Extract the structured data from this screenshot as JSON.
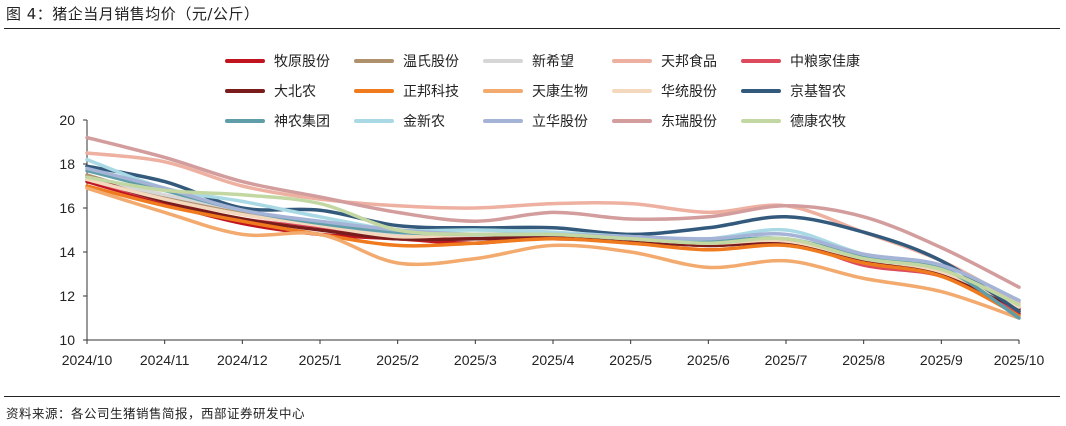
{
  "header": {
    "title": "图 4：猪企当月销售均价（元/公斤）"
  },
  "footer": {
    "source": "资料来源：各公司生猪销售简报，西部证券研发中心"
  },
  "chart_data": {
    "type": "line",
    "title": "猪企当月销售均价（元/公斤）",
    "xlabel": "",
    "ylabel": "",
    "ylim": [
      10,
      20
    ],
    "yticks": [
      10,
      12,
      14,
      16,
      18,
      20
    ],
    "grid": false,
    "legend_position": "top",
    "categories": [
      "2024/10",
      "2024/11",
      "2024/12",
      "2025/1",
      "2025/2",
      "2025/3",
      "2025/4",
      "2025/5",
      "2025/6",
      "2025/7",
      "2025/8",
      "2025/9",
      "2025/10"
    ],
    "series": [
      {
        "name": "牧原股份",
        "color": "#c0151f",
        "values": [
          17.2,
          16.2,
          15.3,
          14.8,
          14.6,
          14.4,
          14.7,
          14.5,
          14.3,
          14.4,
          13.5,
          13.0,
          11.2
        ]
      },
      {
        "name": "温氏股份",
        "color": "#b0916e",
        "values": [
          17.5,
          16.5,
          15.8,
          15.3,
          14.7,
          14.7,
          14.8,
          14.6,
          14.5,
          14.3,
          13.8,
          13.2,
          11.5
        ]
      },
      {
        "name": "新希望",
        "color": "#d6d6d6",
        "values": [
          17.4,
          16.6,
          15.9,
          15.2,
          14.8,
          14.7,
          14.6,
          14.5,
          14.4,
          14.4,
          13.7,
          13.1,
          11.4
        ]
      },
      {
        "name": "天邦食品",
        "color": "#eeb0a0",
        "values": [
          18.5,
          18.1,
          17.0,
          16.4,
          16.1,
          16.0,
          16.2,
          16.2,
          15.8,
          16.1,
          14.9,
          13.6,
          11.7
        ]
      },
      {
        "name": "中粮家佳康",
        "color": "#dc4a5e",
        "values": [
          17.3,
          16.3,
          15.5,
          15.1,
          14.6,
          14.6,
          14.6,
          14.5,
          14.3,
          14.5,
          13.4,
          12.9,
          11.3
        ]
      },
      {
        "name": "大北农",
        "color": "#7a1c1c",
        "values": [
          17.4,
          16.3,
          15.5,
          15.0,
          14.6,
          14.6,
          14.7,
          14.5,
          14.3,
          14.4,
          13.6,
          13.0,
          11.4
        ]
      },
      {
        "name": "正邦科技",
        "color": "#ef7b1e",
        "values": [
          17.0,
          16.1,
          15.4,
          14.8,
          14.3,
          14.4,
          14.6,
          14.4,
          14.1,
          14.3,
          13.5,
          12.9,
          11.1
        ]
      },
      {
        "name": "天康生物",
        "color": "#f2aa6e",
        "values": [
          16.9,
          15.8,
          14.8,
          14.8,
          13.5,
          13.7,
          14.3,
          14.0,
          13.3,
          13.6,
          12.8,
          12.2,
          11.0
        ]
      },
      {
        "name": "华统股份",
        "color": "#f3d8bd",
        "values": [
          17.3,
          16.4,
          15.7,
          15.2,
          14.7,
          14.8,
          14.8,
          14.6,
          14.4,
          14.5,
          13.7,
          13.1,
          11.5
        ]
      },
      {
        "name": "京基智农",
        "color": "#335a7c",
        "values": [
          17.9,
          17.2,
          16.0,
          15.9,
          15.2,
          15.1,
          15.1,
          14.8,
          15.1,
          15.6,
          14.9,
          13.6,
          11.3
        ]
      },
      {
        "name": "神农集团",
        "color": "#5f9ea8",
        "values": [
          17.7,
          16.8,
          15.9,
          15.3,
          14.9,
          14.8,
          14.8,
          14.6,
          14.5,
          14.6,
          13.8,
          13.3,
          11.0
        ]
      },
      {
        "name": "金新农",
        "color": "#a9d9e4",
        "values": [
          18.2,
          16.9,
          16.3,
          15.6,
          15.0,
          15.0,
          14.9,
          14.7,
          14.6,
          15.0,
          13.9,
          13.4,
          11.8
        ]
      },
      {
        "name": "立华股份",
        "color": "#a4b3d6",
        "values": [
          17.8,
          16.9,
          15.9,
          15.4,
          15.0,
          14.8,
          14.8,
          14.7,
          14.6,
          14.8,
          13.9,
          13.4,
          11.8
        ]
      },
      {
        "name": "东瑞股份",
        "color": "#d29d9c",
        "values": [
          19.2,
          18.3,
          17.2,
          16.5,
          15.8,
          15.4,
          15.8,
          15.5,
          15.6,
          16.1,
          15.6,
          14.2,
          12.4
        ]
      },
      {
        "name": "德康农牧",
        "color": "#c3d7a2",
        "values": [
          17.4,
          16.8,
          16.6,
          16.2,
          15.0,
          14.8,
          14.8,
          14.6,
          14.4,
          14.6,
          13.7,
          13.2,
          11.6
        ]
      }
    ]
  }
}
